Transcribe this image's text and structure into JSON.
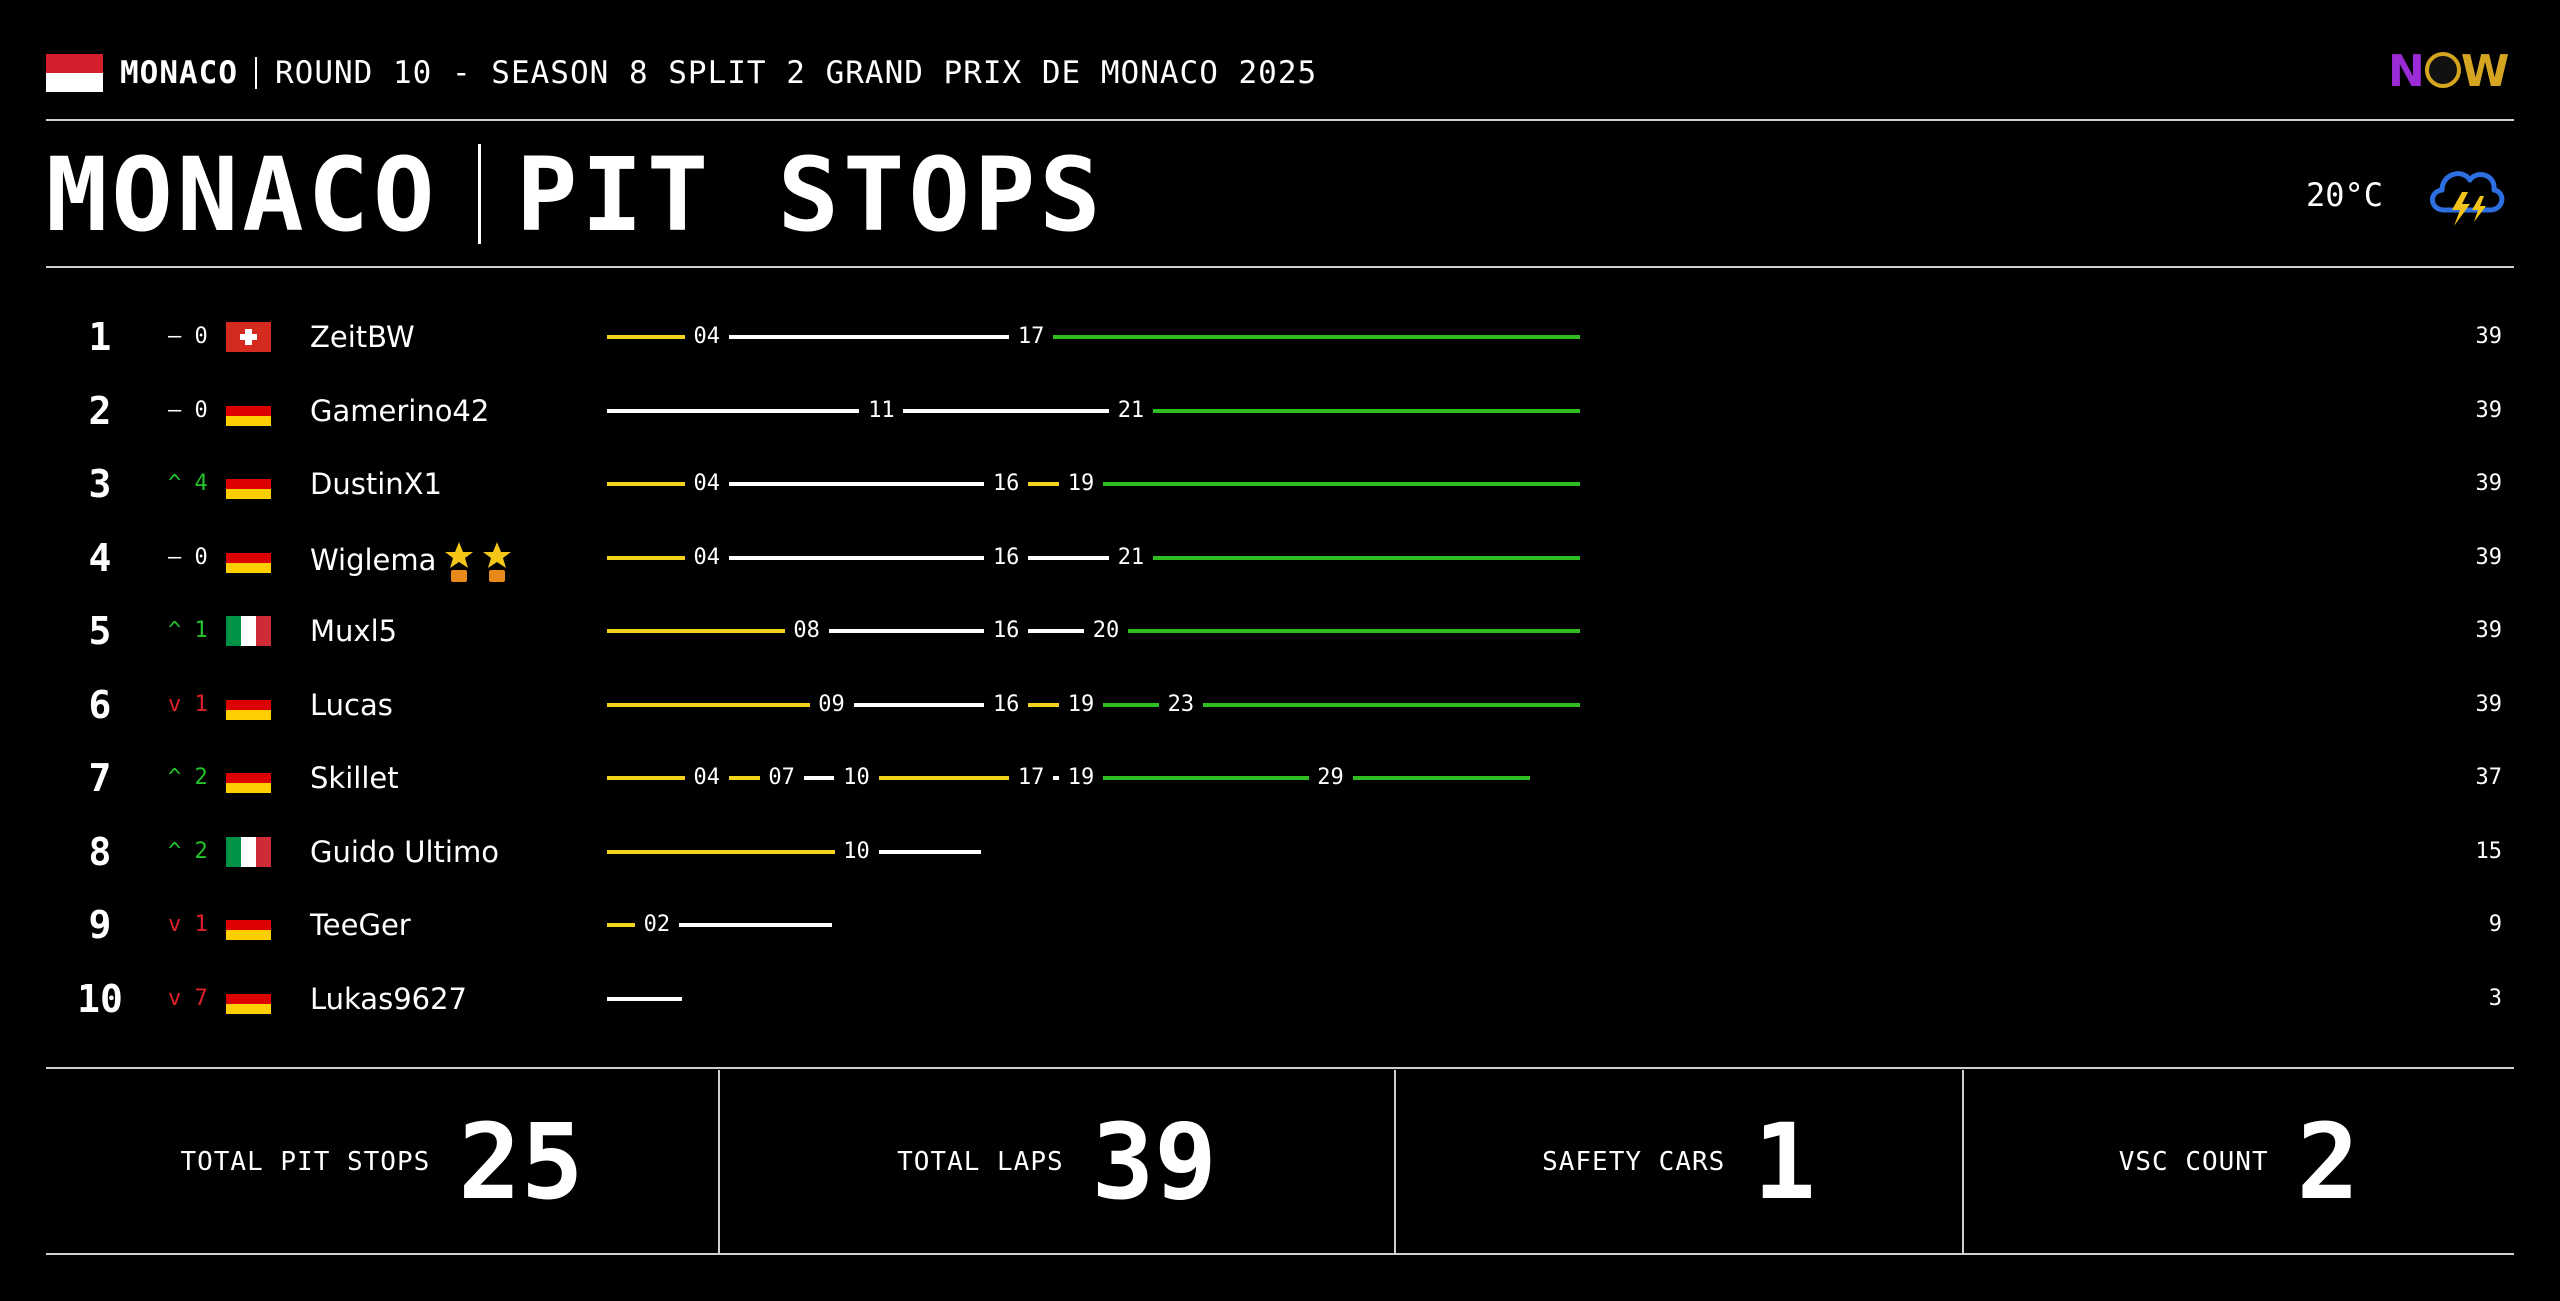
{
  "header": {
    "country": "MONACO",
    "event": "ROUND 10 - SEASON 8 SPLIT 2 GRAND PRIX DE MONACO 2025",
    "logo": "NOW",
    "flag_icon": "monaco-flag-icon"
  },
  "title": {
    "main": "MONACO",
    "sub": "PIT STOPS"
  },
  "weather": {
    "temperature": "20°C",
    "icon": "thunderstorm-icon"
  },
  "colors": {
    "soft": "#f2d21b",
    "medium": "#ffffff",
    "hard": "#2fbf21",
    "gain": "#22c32a",
    "loss": "#e0202a"
  },
  "results": [
    {
      "pos": "1",
      "change": "– 0",
      "trend": "same",
      "flag": "ch",
      "name": "ZeitBW",
      "final": "39",
      "stints": [
        {
          "c": "soft",
          "from": 0,
          "to": 4
        },
        {
          "c": "medium",
          "from": 4,
          "to": 17
        },
        {
          "c": "hard",
          "from": 17,
          "to": 39
        }
      ],
      "labels": [
        "04",
        "17"
      ]
    },
    {
      "pos": "2",
      "change": "– 0",
      "trend": "same",
      "flag": "de",
      "name": "Gamerino42",
      "final": "39",
      "stints": [
        {
          "c": "medium",
          "from": 0,
          "to": 11
        },
        {
          "c": "medium",
          "from": 11,
          "to": 21
        },
        {
          "c": "hard",
          "from": 21,
          "to": 39
        }
      ],
      "labels": [
        "11",
        "21"
      ]
    },
    {
      "pos": "3",
      "change": "^ 4",
      "trend": "up",
      "flag": "de",
      "name": "DustinX1",
      "final": "39",
      "stints": [
        {
          "c": "soft",
          "from": 0,
          "to": 4
        },
        {
          "c": "medium",
          "from": 4,
          "to": 16
        },
        {
          "c": "soft",
          "from": 16,
          "to": 19
        },
        {
          "c": "hard",
          "from": 19,
          "to": 39
        }
      ],
      "labels": [
        "04",
        "16",
        "19"
      ]
    },
    {
      "pos": "4",
      "change": "– 0",
      "trend": "same",
      "flag": "de",
      "name": "Wiglema",
      "final": "39",
      "stars": 2,
      "stints": [
        {
          "c": "soft",
          "from": 0,
          "to": 4
        },
        {
          "c": "medium",
          "from": 4,
          "to": 16
        },
        {
          "c": "medium",
          "from": 16,
          "to": 21
        },
        {
          "c": "hard",
          "from": 21,
          "to": 39
        }
      ],
      "labels": [
        "04",
        "16",
        "21"
      ]
    },
    {
      "pos": "5",
      "change": "^ 1",
      "trend": "up",
      "flag": "it",
      "name": "Muxl5",
      "final": "39",
      "stints": [
        {
          "c": "soft",
          "from": 0,
          "to": 8
        },
        {
          "c": "medium",
          "from": 8,
          "to": 16
        },
        {
          "c": "medium",
          "from": 16,
          "to": 20
        },
        {
          "c": "hard",
          "from": 20,
          "to": 39
        }
      ],
      "labels": [
        "08",
        "16",
        "20"
      ]
    },
    {
      "pos": "6",
      "change": "v 1",
      "trend": "down",
      "flag": "de",
      "name": "Lucas",
      "final": "39",
      "stints": [
        {
          "c": "soft",
          "from": 0,
          "to": 9
        },
        {
          "c": "medium",
          "from": 9,
          "to": 16
        },
        {
          "c": "soft",
          "from": 16,
          "to": 19
        },
        {
          "c": "hard",
          "from": 19,
          "to": 23
        },
        {
          "c": "hard",
          "from": 23,
          "to": 39
        }
      ],
      "labels": [
        "09",
        "16",
        "19",
        "23"
      ]
    },
    {
      "pos": "7",
      "change": "^ 2",
      "trend": "up",
      "flag": "de",
      "name": "Skillet",
      "final": "37",
      "stints": [
        {
          "c": "soft",
          "from": 0,
          "to": 4
        },
        {
          "c": "soft",
          "from": 4,
          "to": 7
        },
        {
          "c": "medium",
          "from": 7,
          "to": 10
        },
        {
          "c": "soft",
          "from": 10,
          "to": 17
        },
        {
          "c": "medium",
          "from": 17,
          "to": 19
        },
        {
          "c": "hard",
          "from": 19,
          "to": 29
        },
        {
          "c": "hard",
          "from": 29,
          "to": 37
        }
      ],
      "labels": [
        "04",
        "07",
        "10",
        "17",
        "19",
        "29"
      ]
    },
    {
      "pos": "8",
      "change": "^ 2",
      "trend": "up",
      "flag": "it",
      "name": "Guido Ultimo",
      "final": "15",
      "stints": [
        {
          "c": "soft",
          "from": 0,
          "to": 10
        },
        {
          "c": "medium",
          "from": 10,
          "to": 15
        }
      ],
      "labels": [
        "10"
      ]
    },
    {
      "pos": "9",
      "change": "v 1",
      "trend": "down",
      "flag": "de",
      "name": "TeeGer",
      "final": "9",
      "stints": [
        {
          "c": "soft",
          "from": 0,
          "to": 2
        },
        {
          "c": "medium",
          "from": 2,
          "to": 9
        }
      ],
      "labels": [
        "02"
      ]
    },
    {
      "pos": "10",
      "change": "v 7",
      "trend": "down",
      "flag": "de",
      "name": "Lukas9627",
      "final": "3",
      "stints": [
        {
          "c": "medium",
          "from": 0,
          "to": 3
        }
      ],
      "labels": []
    }
  ],
  "stats": {
    "pit_stops_label": "TOTAL PIT STOPS",
    "pit_stops": "25",
    "laps_label": "TOTAL LAPS",
    "laps": "39",
    "safety_cars_label": "SAFETY CARS",
    "safety_cars": "1",
    "vsc_label": "VSC COUNT",
    "vsc": "2"
  }
}
